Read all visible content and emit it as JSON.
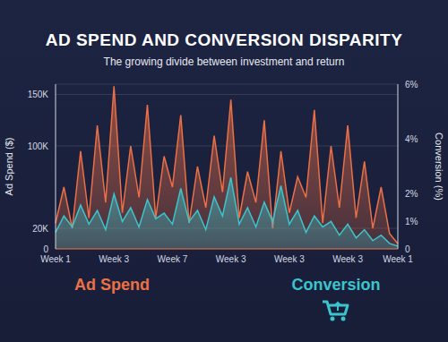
{
  "chart_data": {
    "type": "area",
    "title": "AD SPEND AND CONVERSION DISPARITY",
    "subtitle": "The growing divide between investment and return",
    "categories": [
      "Week 1",
      null,
      null,
      null,
      null,
      null,
      null,
      "Week 3",
      null,
      null,
      null,
      null,
      null,
      null,
      "Week 7",
      null,
      null,
      null,
      null,
      null,
      null,
      "Week 3",
      null,
      null,
      null,
      null,
      null,
      null,
      "Week 3",
      null,
      null,
      null,
      null,
      null,
      null,
      "Week 3",
      null,
      null,
      null,
      null,
      null,
      "Week 1"
    ],
    "series": [
      {
        "name": "Ad Spend",
        "color": "#ec7046",
        "values": [
          25000,
          60000,
          20000,
          95000,
          30000,
          120000,
          45000,
          158000,
          35000,
          100000,
          50000,
          140000,
          30000,
          90000,
          60000,
          130000,
          25000,
          80000,
          40000,
          110000,
          55000,
          145000,
          30000,
          75000,
          45000,
          125000,
          20000,
          95000,
          35000,
          70000,
          50000,
          135000,
          25000,
          100000,
          40000,
          120000,
          30000,
          85000,
          20000,
          60000,
          15000,
          5000
        ]
      },
      {
        "name": "Conversion",
        "color": "#3cc4cc",
        "axis": "y2",
        "values": [
          0.6,
          1.2,
          0.8,
          1.6,
          0.9,
          1.4,
          0.7,
          2.0,
          1.0,
          1.5,
          0.8,
          1.8,
          1.1,
          1.3,
          0.9,
          2.2,
          1.0,
          1.4,
          0.7,
          1.9,
          1.2,
          2.6,
          0.9,
          1.5,
          0.8,
          1.7,
          1.0,
          2.3,
          0.9,
          1.4,
          0.6,
          1.2,
          0.8,
          1.0,
          0.5,
          0.9,
          0.4,
          0.7,
          0.3,
          0.5,
          0.2,
          0.1
        ]
      }
    ],
    "y_label": "Ad Spend ($)",
    "y2_label": "Conversion (%)",
    "ylim": [
      0,
      160000
    ],
    "yticks": [
      0,
      {
        "value": 20000,
        "label": "20K"
      },
      {
        "value": 100000,
        "label": "100K"
      },
      {
        "value": 150000,
        "label": "150K"
      }
    ],
    "y2lim": [
      0,
      6
    ],
    "y2ticks": [
      0,
      {
        "value": 1,
        "label": "1%"
      },
      {
        "value": 2,
        "label": "2%"
      },
      {
        "value": 4,
        "label": "4%"
      },
      {
        "value": 6,
        "label": "6%"
      }
    ],
    "grid": true,
    "legend": "bottom"
  }
}
